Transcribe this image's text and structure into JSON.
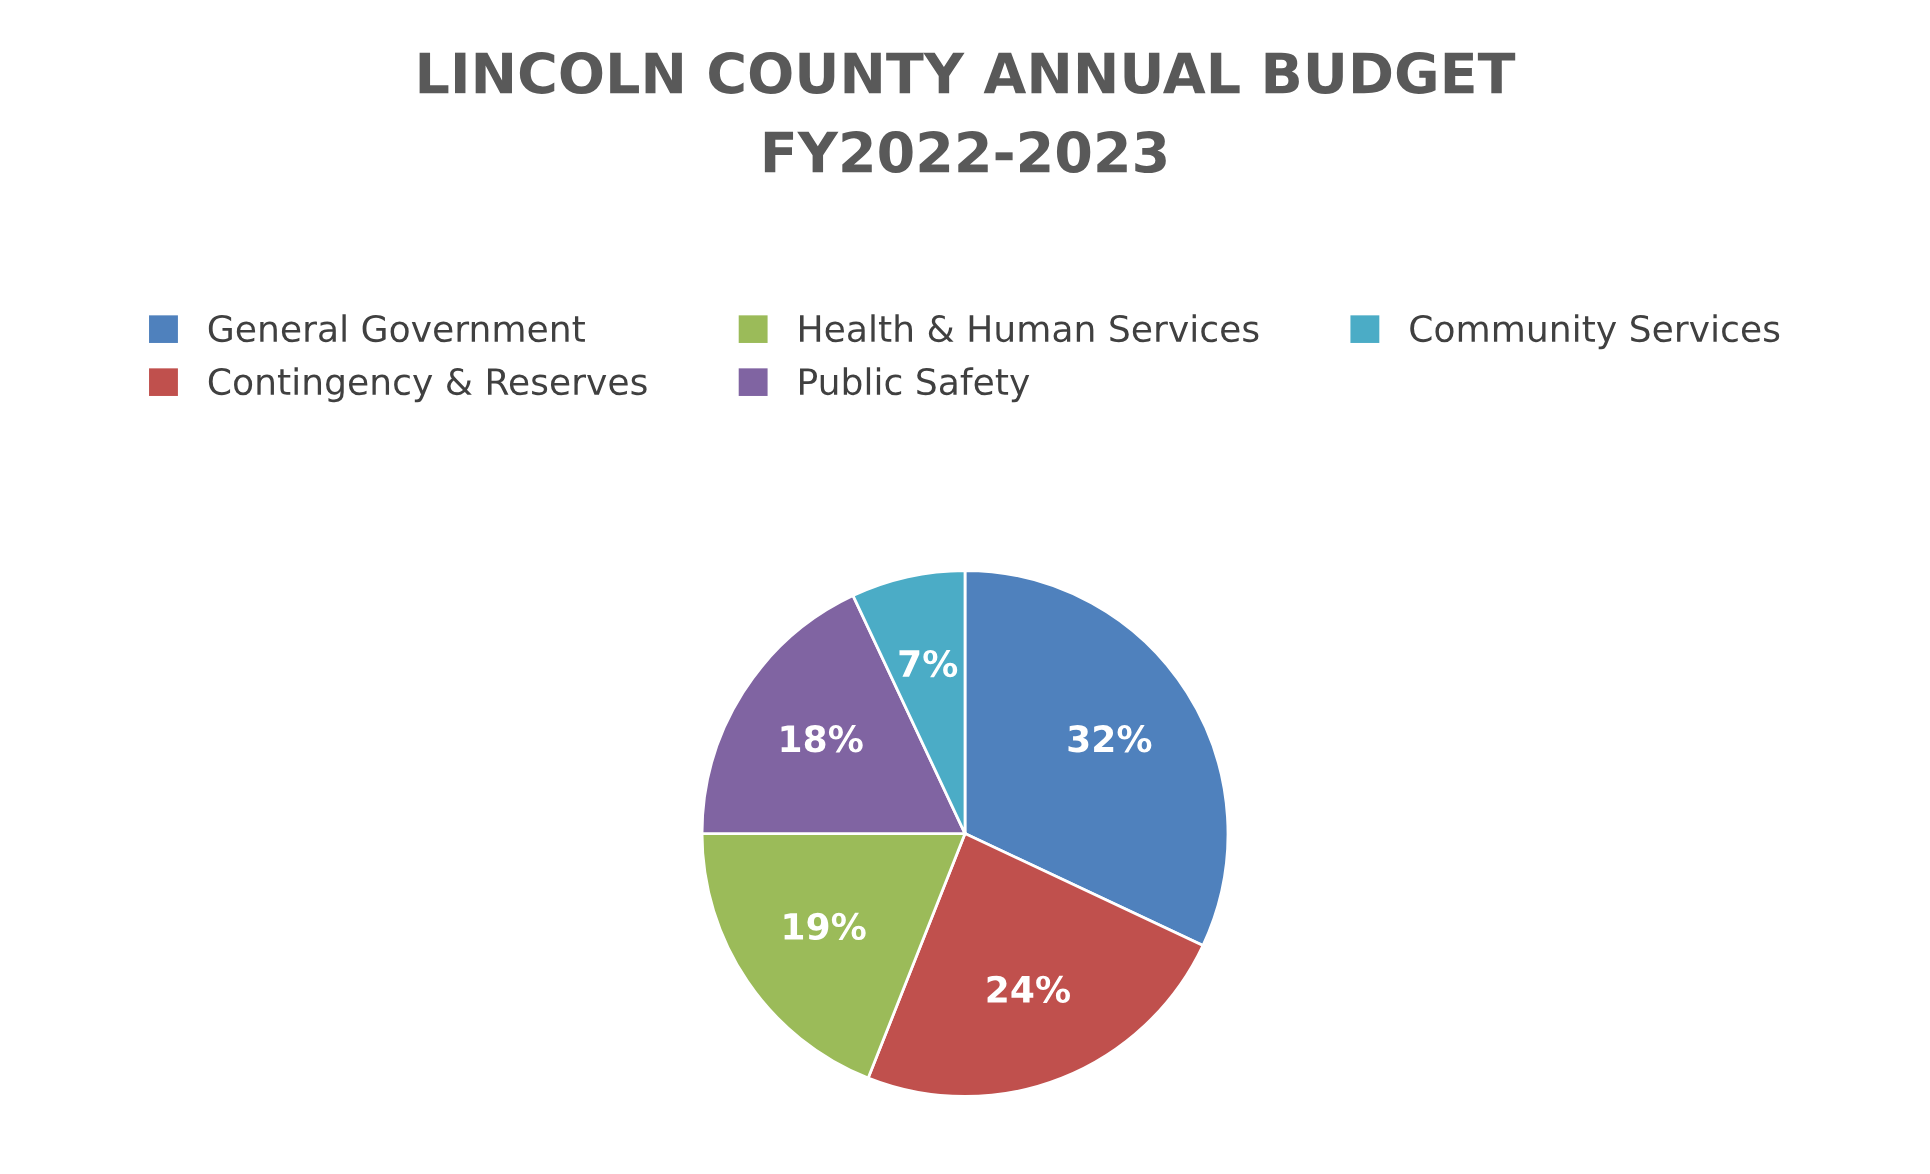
{
  "chart_data": {
    "type": "pie",
    "title": "LINCOLN COUNTY ANNUAL BUDGET\nFY2022-2023",
    "categories": [
      "General Government",
      "Contingency & Reserves",
      "Health & Human Services",
      "Public Safety",
      "Community Services"
    ],
    "values": [
      32,
      24,
      19,
      18,
      7
    ],
    "colors": [
      "#4f81bd",
      "#c0504d",
      "#9bbb59",
      "#8064a2",
      "#4bacc6"
    ],
    "value_labels": [
      "32%",
      "24%",
      "19%",
      "18%",
      "7%"
    ],
    "legend": "top"
  }
}
